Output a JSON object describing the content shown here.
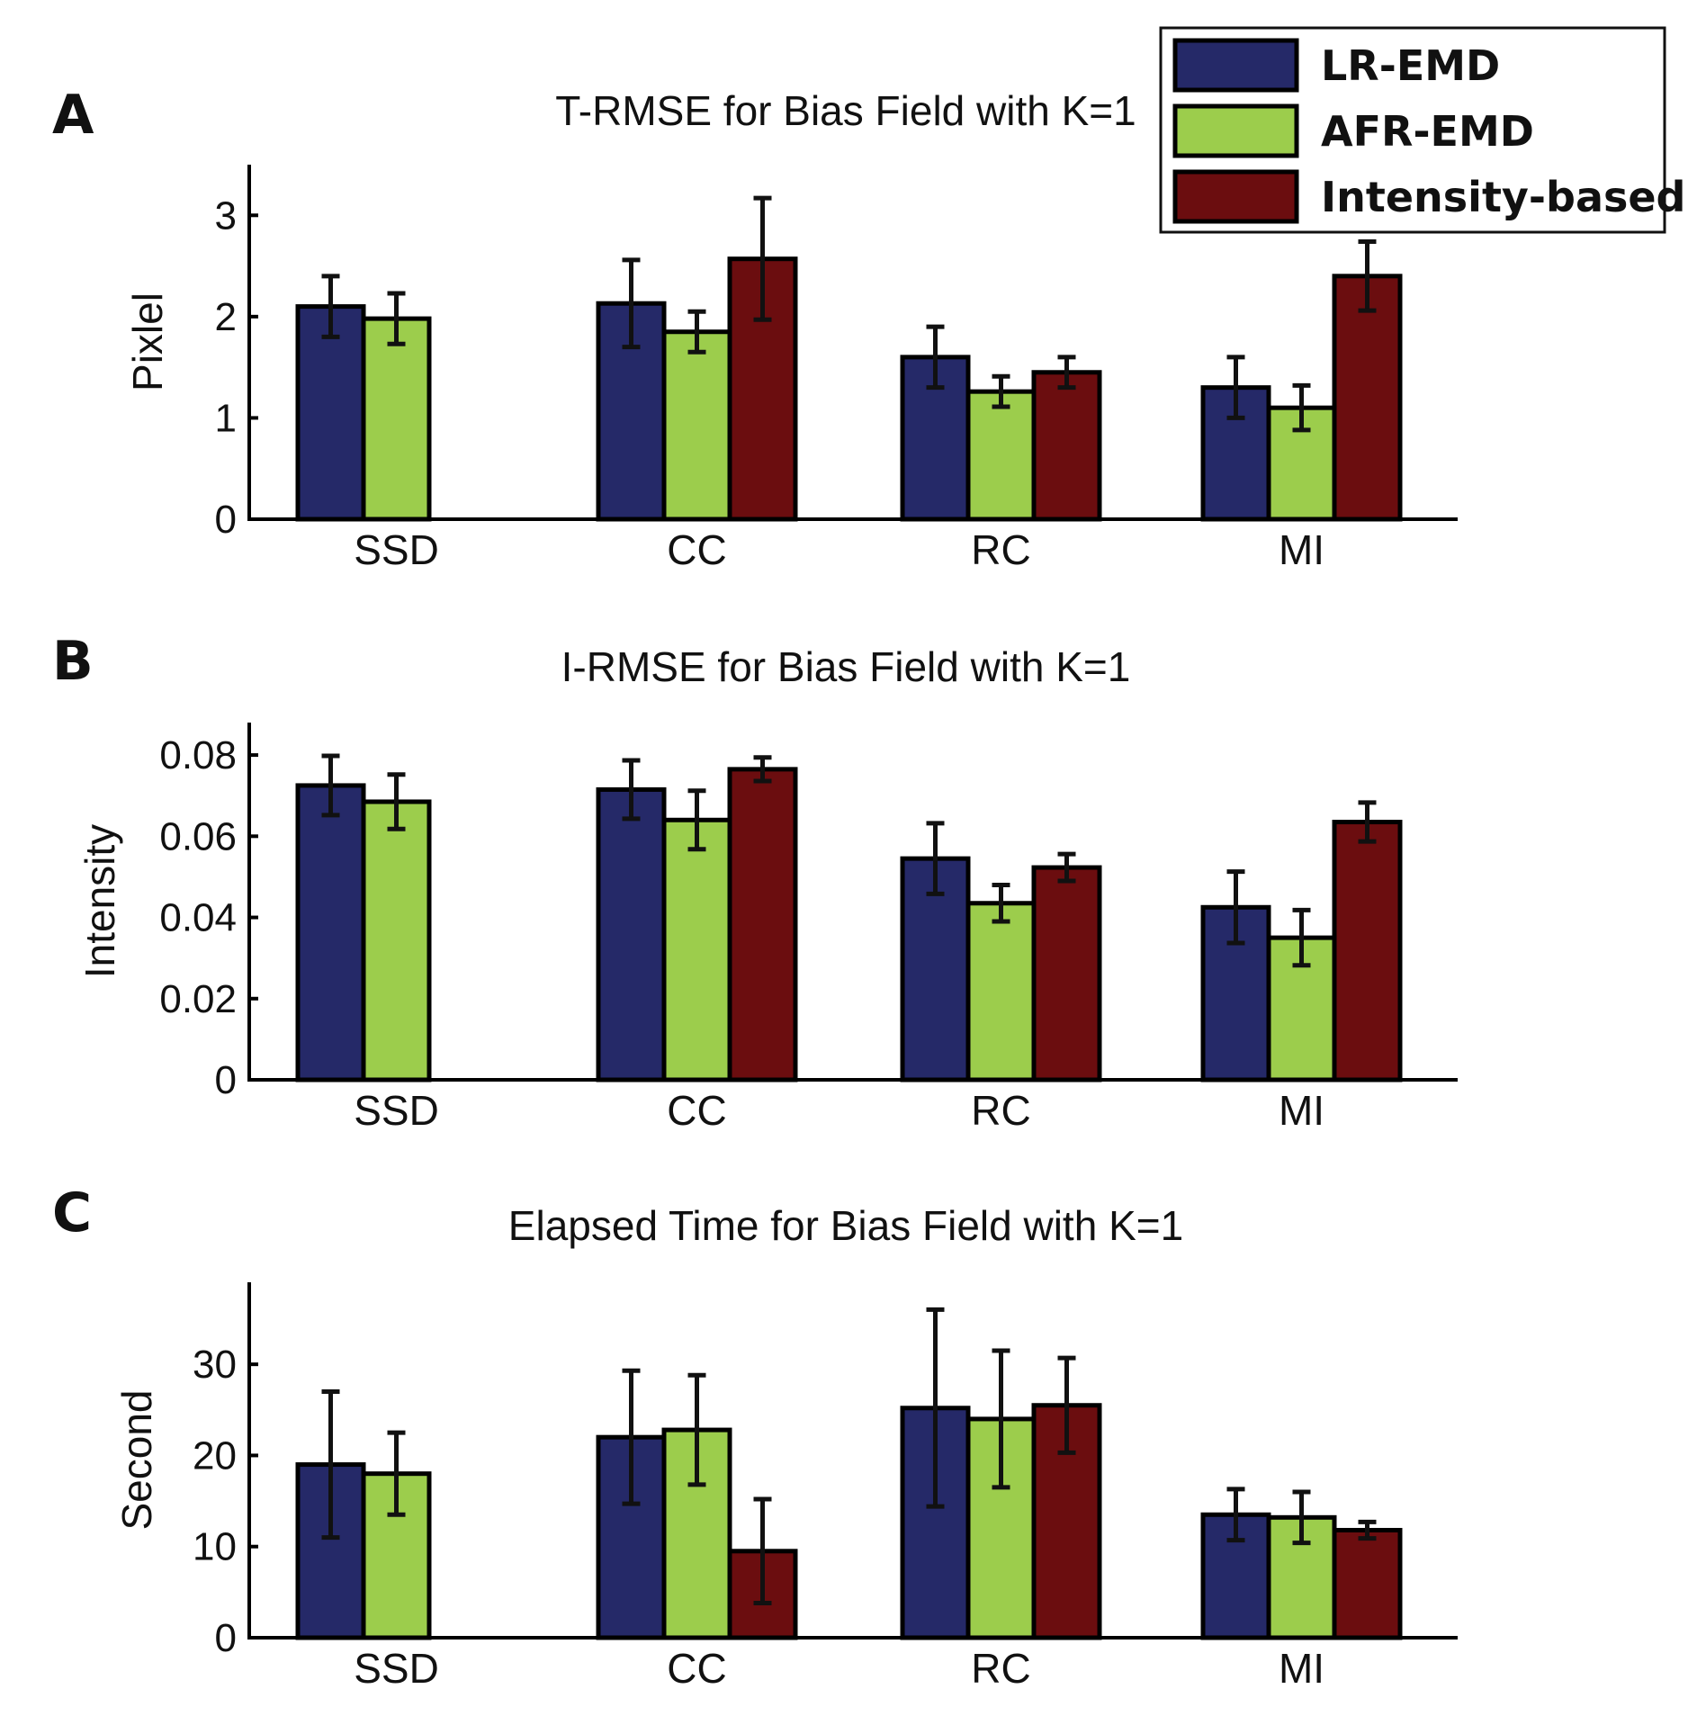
{
  "legend": {
    "entries": [
      {
        "label": "LR-EMD",
        "color": "#252968"
      },
      {
        "label": "AFR-EMD",
        "color": "#9ccd4c"
      },
      {
        "label": "Intensity-based",
        "color": "#6b0d0f"
      }
    ]
  },
  "chart_data": [
    {
      "panel": "A",
      "type": "bar",
      "title": "T-RMSE for Bias Field with K=1",
      "xlabel": "",
      "ylabel": "Pixlel",
      "categories": [
        "SSD",
        "CC",
        "RC",
        "MI"
      ],
      "ylim": [
        0,
        3.5
      ],
      "yticks": [
        0,
        1,
        2,
        3
      ],
      "ytick_labels": [
        "0",
        "1",
        "2",
        "3"
      ],
      "series": [
        {
          "name": "LR-EMD",
          "values": [
            2.1,
            2.13,
            1.6,
            1.3
          ],
          "errors": [
            0.3,
            0.43,
            0.3,
            0.3
          ]
        },
        {
          "name": "AFR-EMD",
          "values": [
            1.98,
            1.85,
            1.26,
            1.1
          ],
          "errors": [
            0.25,
            0.2,
            0.15,
            0.22
          ]
        },
        {
          "name": "Intensity-based",
          "values": [
            0,
            2.57,
            1.45,
            2.4
          ],
          "errors": [
            0,
            0.6,
            0.15,
            0.34
          ]
        }
      ]
    },
    {
      "panel": "B",
      "type": "bar",
      "title": "I-RMSE for Bias Field with K=1",
      "xlabel": "",
      "ylabel": "Intensity",
      "categories": [
        "SSD",
        "CC",
        "RC",
        "MI"
      ],
      "ylim": [
        0,
        0.088
      ],
      "yticks": [
        0,
        0.02,
        0.04,
        0.06,
        0.08
      ],
      "ytick_labels": [
        "0",
        "0.02",
        "0.04",
        "0.06",
        "0.08"
      ],
      "series": [
        {
          "name": "LR-EMD",
          "values": [
            0.0725,
            0.0715,
            0.0545,
            0.0425
          ],
          "errors": [
            0.0073,
            0.0072,
            0.0087,
            0.0088
          ]
        },
        {
          "name": "AFR-EMD",
          "values": [
            0.0685,
            0.064,
            0.0435,
            0.035
          ],
          "errors": [
            0.0067,
            0.0072,
            0.0045,
            0.0068
          ]
        },
        {
          "name": "Intensity-based",
          "values": [
            0,
            0.0765,
            0.0523,
            0.0635
          ],
          "errors": [
            0,
            0.0029,
            0.0033,
            0.0048
          ]
        }
      ]
    },
    {
      "panel": "C",
      "type": "bar",
      "title": "Elapsed Time for Bias Field with K=1",
      "xlabel": "",
      "ylabel": "Second",
      "categories": [
        "SSD",
        "CC",
        "RC",
        "MI"
      ],
      "ylim": [
        0,
        39
      ],
      "yticks": [
        0,
        10,
        20,
        30
      ],
      "ytick_labels": [
        "0",
        "10",
        "20",
        "30"
      ],
      "series": [
        {
          "name": "LR-EMD",
          "values": [
            19,
            22,
            25.2,
            13.5
          ],
          "errors": [
            8,
            7.3,
            10.8,
            2.8
          ]
        },
        {
          "name": "AFR-EMD",
          "values": [
            18,
            22.8,
            24,
            13.2
          ],
          "errors": [
            4.5,
            6,
            7.5,
            2.8
          ]
        },
        {
          "name": "Intensity-based",
          "values": [
            0,
            9.5,
            25.5,
            11.8
          ],
          "errors": [
            0,
            5.7,
            5.2,
            0.9
          ]
        }
      ]
    }
  ]
}
